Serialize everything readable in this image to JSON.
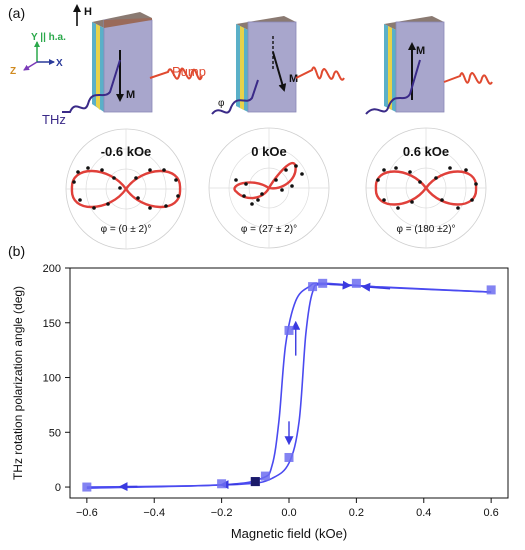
{
  "panel_a": {
    "label": "(a)",
    "h_label": "H",
    "y_axis_label": "Y || h.a.",
    "z_label": "Z",
    "x_label": "X",
    "pump_label": "Pump",
    "thz_label": "THz",
    "phi_label": "φ",
    "m_label": "M",
    "polars": [
      {
        "field": "-0.6 kOe",
        "angle": "φ = (0 ± 2)°"
      },
      {
        "field": "0 kOe",
        "angle": "φ = (27 ± 2)°"
      },
      {
        "field": "0.6 kOe",
        "angle": "φ = (180 ±2)°"
      }
    ]
  },
  "panel_b": {
    "label": "(b)"
  },
  "chart_data": {
    "type": "scatter",
    "title": "",
    "xlabel": "Magnetic field (kOe)",
    "ylabel": "THz rotation polarization angle (deg)",
    "xlim": [
      -0.65,
      0.65
    ],
    "ylim": [
      -10,
      200
    ],
    "xticks": [
      "−0.6",
      "−0.4",
      "−0.2",
      "0.0",
      "0.2",
      "0.4",
      "0.6"
    ],
    "yticks": [
      "0",
      "50",
      "100",
      "150",
      "200"
    ],
    "grid": false,
    "series": [
      {
        "color": "#6d6df0",
        "points": [
          [
            -0.6,
            0
          ],
          [
            -0.2,
            3
          ],
          [
            -0.1,
            5
          ],
          [
            -0.07,
            10
          ],
          [
            0.0,
            27
          ],
          [
            0.0,
            143
          ],
          [
            0.07,
            183
          ],
          [
            0.1,
            186
          ],
          [
            0.2,
            186
          ],
          [
            0.6,
            180
          ]
        ]
      }
    ],
    "highlight_point": [
      -0.1,
      5
    ],
    "sweep_up": [
      [
        -0.6,
        0
      ],
      [
        -0.3,
        1
      ],
      [
        -0.12,
        3
      ],
      [
        -0.05,
        8
      ],
      [
        0.0,
        22
      ],
      [
        0.03,
        60
      ],
      [
        0.05,
        140
      ],
      [
        0.07,
        178
      ],
      [
        0.1,
        185
      ],
      [
        0.25,
        183
      ],
      [
        0.6,
        178
      ]
    ],
    "sweep_down": [
      [
        0.6,
        178
      ],
      [
        0.3,
        182
      ],
      [
        0.1,
        186
      ],
      [
        0.06,
        183
      ],
      [
        0.02,
        170
      ],
      [
        -0.01,
        130
      ],
      [
        -0.03,
        60
      ],
      [
        -0.05,
        20
      ],
      [
        -0.08,
        8
      ],
      [
        -0.2,
        2
      ],
      [
        -0.6,
        -1
      ]
    ]
  }
}
